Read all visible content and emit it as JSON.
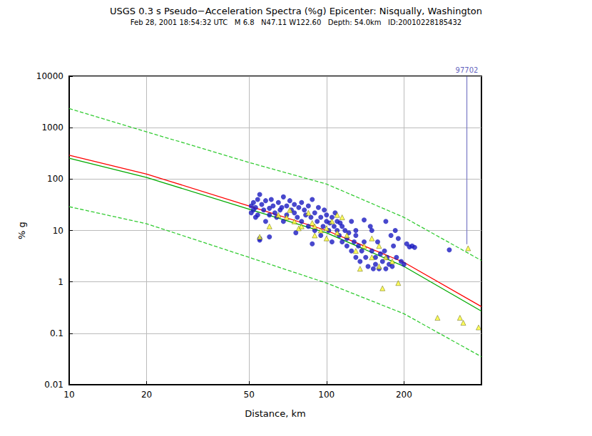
{
  "chart_data": {
    "type": "scatter",
    "title": "USGS 0.3 s Pseudo−Acceleration Spectra (%g) Epicenter: Nisqually, Washington",
    "subtitle": "Feb 28, 2001 18:54:32 UTC   M 6.8   N47.11 W122.60   Depth: 54.0km   ID:20010228185432",
    "xlabel": "Distance, km",
    "ylabel": "% g",
    "log": true,
    "grid": true,
    "xlim": [
      10,
      400
    ],
    "ylim": [
      0.01,
      10000
    ],
    "xticks": [
      10,
      20,
      50,
      100,
      200
    ],
    "yticks": [
      0.01,
      0.1,
      1,
      10,
      100,
      1000,
      10000
    ],
    "annotations": [
      {
        "text": "97702",
        "x": 351,
        "y": 10000
      }
    ],
    "series": [
      {
        "type": "line",
        "color": "#8080c8",
        "line_style": "solid",
        "x": [
          351,
          351
        ],
        "y": [
          5.4,
          10000
        ]
      },
      {
        "type": "line",
        "color": "#33cc33",
        "line_style": "dashed",
        "x": [
          10,
          20,
          50,
          100,
          200,
          400
        ],
        "y": [
          2350,
          830,
          210,
          80,
          18,
          2.6
        ]
      },
      {
        "type": "line",
        "color": "#33cc33",
        "line_style": "dashed",
        "x": [
          10,
          20,
          50,
          100,
          200,
          400
        ],
        "y": [
          29,
          13.5,
          3.0,
          0.95,
          0.24,
          0.035
        ]
      },
      {
        "type": "line",
        "color": "#ff0000",
        "line_style": "solid",
        "x": [
          10,
          20,
          50,
          100,
          200,
          400
        ],
        "y": [
          290,
          125,
          30,
          10,
          2.4,
          0.33
        ]
      },
      {
        "type": "line",
        "color": "#00aa00",
        "line_style": "solid",
        "x": [
          10,
          20,
          50,
          100,
          200,
          400
        ],
        "y": [
          254,
          107,
          26,
          9,
          2.0,
          0.27
        ]
      },
      {
        "type": "scatter",
        "color": "#1a1ac0",
        "marker": "circle",
        "x": [
          51,
          51,
          52,
          52,
          53,
          53,
          54,
          54,
          55,
          55,
          55,
          56,
          57,
          58,
          58,
          60,
          60,
          61,
          62,
          63,
          64,
          65,
          66,
          67,
          68,
          68,
          70,
          70,
          72,
          73,
          75,
          75,
          77,
          78,
          80,
          80,
          82,
          83,
          85,
          85,
          87,
          88,
          90,
          90,
          92,
          93,
          95,
          95,
          97,
          98,
          100,
          100,
          102,
          103,
          105,
          105,
          107,
          108,
          110,
          110,
          112,
          113,
          115,
          115,
          118,
          120,
          120,
          122,
          125,
          125,
          128,
          130,
          130,
          133,
          135,
          137,
          140,
          142,
          145,
          148,
          150,
          150,
          152,
          155,
          155,
          158,
          160,
          162,
          165,
          168,
          170,
          170,
          172,
          175,
          178,
          180,
          182,
          185,
          187,
          190,
          195,
          200,
          205,
          210,
          220,
          215,
          300,
          60,
          140,
          130,
          76,
          88
        ],
        "y": [
          30,
          22,
          25,
          35,
          18,
          28,
          40,
          20,
          50,
          7,
          6.5,
          32,
          25,
          15,
          38,
          27,
          20,
          40,
          30,
          22,
          18,
          35,
          25,
          28,
          15,
          45,
          30,
          20,
          38,
          25,
          22,
          32,
          18,
          28,
          35,
          15,
          25,
          20,
          30,
          12,
          18,
          40,
          22,
          10,
          15,
          28,
          18,
          8,
          12,
          25,
          15,
          20,
          10,
          14,
          18,
          6,
          12,
          22,
          10,
          15,
          8,
          14,
          12,
          6,
          10,
          5,
          7,
          9,
          15,
          4,
          6,
          8,
          3,
          5,
          2.5,
          4,
          6,
          3,
          2,
          12,
          4,
          10,
          1.8,
          3,
          2.2,
          6,
          1.8,
          3.5,
          2.5,
          4,
          1.8,
          15,
          3,
          2.2,
          8,
          2,
          5,
          10,
          3,
          7,
          2.5,
          2.2,
          5.5,
          4.8,
          4.7,
          5,
          4.2,
          7.5,
          16,
          10,
          9,
          5.5
        ]
      },
      {
        "type": "scatter",
        "color": "#ffff33",
        "marker": "triangle",
        "x": [
          55,
          60,
          65,
          70,
          72,
          75,
          78,
          80,
          85,
          88,
          90,
          95,
          100,
          105,
          110,
          115,
          120,
          130,
          135,
          140,
          150,
          160,
          165,
          170,
          180,
          190,
          110,
          100,
          90,
          270,
          330,
          340,
          390,
          150,
          160,
          355
        ],
        "y": [
          7.5,
          12,
          20,
          18,
          25,
          15,
          11,
          12,
          22,
          14,
          12,
          10,
          11,
          15,
          20,
          18,
          8,
          4,
          1.8,
          5,
          3,
          2,
          0.75,
          3,
          2.5,
          0.95,
          9,
          7,
          8,
          0.2,
          0.2,
          0.16,
          0.13,
          7,
          5,
          4.5
        ]
      }
    ]
  }
}
